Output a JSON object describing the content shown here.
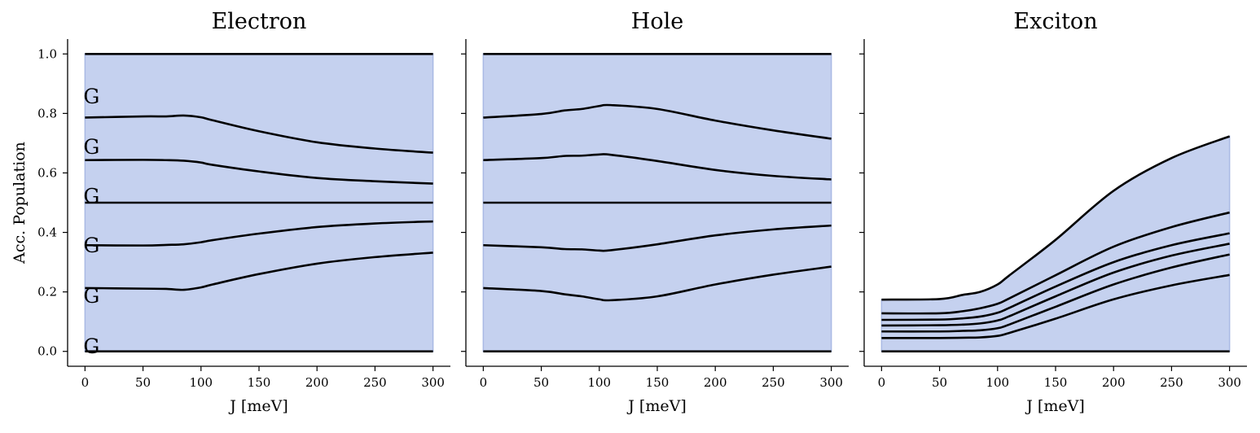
{
  "chart_data": {
    "type": "area",
    "ylabel": "Acc. Population",
    "ylim": [
      -0.05,
      1.05
    ],
    "xlim": [
      -15,
      315
    ],
    "xticks": [
      "0",
      "50",
      "100",
      "150",
      "200",
      "250",
      "300"
    ],
    "yticks": [
      "0.0",
      "0.2",
      "0.4",
      "0.6",
      "0.8",
      "1.0"
    ],
    "fill_color": "#c5d1ef",
    "line_color": "#000000",
    "x": [
      0,
      50,
      70,
      85,
      100,
      110,
      150,
      200,
      250,
      300
    ],
    "panels": [
      {
        "title": "Electron",
        "xlabel": "J [meV]",
        "region_labels": [
          {
            "text": "G",
            "y": 0.01
          },
          {
            "text": "G",
            "y": 0.18
          },
          {
            "text": "G",
            "y": 0.35
          },
          {
            "text": "G",
            "y": 0.515
          },
          {
            "text": "G",
            "y": 0.68
          },
          {
            "text": "G",
            "y": 0.85
          }
        ],
        "series": [
          {
            "values": [
              0,
              0,
              0,
              0,
              0,
              0,
              0,
              0,
              0,
              0
            ]
          },
          {
            "values": [
              0.213,
              0.211,
              0.21,
              0.207,
              0.215,
              0.225,
              0.26,
              0.295,
              0.317,
              0.332
            ]
          },
          {
            "values": [
              0.357,
              0.356,
              0.358,
              0.36,
              0.367,
              0.374,
              0.396,
              0.418,
              0.43,
              0.437
            ]
          },
          {
            "values": [
              0.5,
              0.5,
              0.5,
              0.5,
              0.5,
              0.5,
              0.5,
              0.5,
              0.5,
              0.5
            ]
          },
          {
            "values": [
              0.643,
              0.644,
              0.643,
              0.641,
              0.635,
              0.627,
              0.605,
              0.583,
              0.572,
              0.564
            ]
          },
          {
            "values": [
              0.786,
              0.79,
              0.79,
              0.793,
              0.787,
              0.777,
              0.74,
              0.703,
              0.682,
              0.668
            ]
          },
          {
            "values": [
              1,
              1,
              1,
              1,
              1,
              1,
              1,
              1,
              1,
              1
            ]
          }
        ]
      },
      {
        "title": "Hole",
        "xlabel": "J [meV]",
        "region_labels": [],
        "series": [
          {
            "values": [
              0,
              0,
              0,
              0,
              0,
              0,
              0,
              0,
              0,
              0
            ]
          },
          {
            "values": [
              0.213,
              0.203,
              0.192,
              0.185,
              0.175,
              0.172,
              0.185,
              0.225,
              0.258,
              0.285
            ]
          },
          {
            "values": [
              0.357,
              0.35,
              0.344,
              0.343,
              0.339,
              0.34,
              0.36,
              0.39,
              0.41,
              0.423
            ]
          },
          {
            "values": [
              0.5,
              0.5,
              0.5,
              0.5,
              0.5,
              0.5,
              0.5,
              0.5,
              0.5,
              0.5
            ]
          },
          {
            "values": [
              0.643,
              0.65,
              0.657,
              0.658,
              0.662,
              0.661,
              0.64,
              0.61,
              0.59,
              0.578
            ]
          },
          {
            "values": [
              0.786,
              0.798,
              0.81,
              0.815,
              0.825,
              0.828,
              0.815,
              0.776,
              0.743,
              0.715
            ]
          },
          {
            "values": [
              1,
              1,
              1,
              1,
              1,
              1,
              1,
              1,
              1,
              1
            ]
          }
        ]
      },
      {
        "title": "Exciton",
        "xlabel": "J [meV]",
        "region_labels": [],
        "series": [
          {
            "values": [
              0,
              0,
              0,
              0,
              0,
              0,
              0,
              0,
              0,
              0
            ]
          },
          {
            "values": [
              0.045,
              0.045,
              0.046,
              0.047,
              0.052,
              0.062,
              0.11,
              0.175,
              0.222,
              0.257
            ]
          },
          {
            "values": [
              0.067,
              0.067,
              0.069,
              0.071,
              0.078,
              0.09,
              0.15,
              0.225,
              0.282,
              0.326
            ]
          },
          {
            "values": [
              0.087,
              0.088,
              0.09,
              0.094,
              0.104,
              0.118,
              0.185,
              0.265,
              0.322,
              0.362
            ]
          },
          {
            "values": [
              0.106,
              0.107,
              0.111,
              0.117,
              0.13,
              0.146,
              0.218,
              0.3,
              0.357,
              0.397
            ]
          },
          {
            "values": [
              0.128,
              0.128,
              0.135,
              0.145,
              0.16,
              0.178,
              0.256,
              0.352,
              0.418,
              0.467
            ]
          },
          {
            "values": [
              0.174,
              0.176,
              0.19,
              0.2,
              0.225,
              0.255,
              0.375,
              0.54,
              0.65,
              0.723
            ]
          }
        ]
      }
    ]
  }
}
